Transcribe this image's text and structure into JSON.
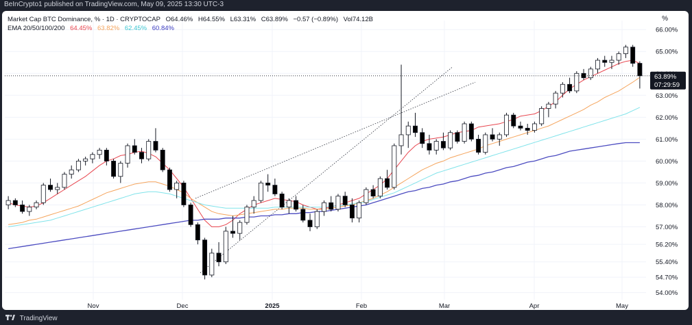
{
  "header": {
    "published": "BeInCrypto1 published on TradingView.com, May 09, 2025 13:30 UTC-3"
  },
  "legend": {
    "title": "Market Cap BTC Dominance, % · 1D · CRYPTOCAP",
    "open": "O64.46%",
    "high": "H64.55%",
    "low": "L63.31%",
    "close": "C63.89%",
    "change": "−0.57 (−0.89%)",
    "vol": "Vol74.12B",
    "ema_label": "EMA 20/50/100/200",
    "ema20": "64.45%",
    "ema50": "63.82%",
    "ema100": "62.45%",
    "ema200": "60.84%"
  },
  "axis_unit": "%",
  "price_tag": {
    "value": "63.89%",
    "countdown": "07:29:59"
  },
  "footer": {
    "brand": "TradingView"
  },
  "colors": {
    "up": "#ffffff",
    "down": "#000000",
    "candle_border": "#131722",
    "ema20": "#e8464f",
    "ema50": "#f5a45c",
    "ema100": "#7fe3ea",
    "ema200": "#4b4bc0",
    "grid": "#f0f3fa",
    "text": "#131722"
  },
  "chart_data": {
    "type": "candlestick",
    "y_ticks": [
      "66.00%",
      "65.00%",
      "64.00%",
      "63.00%",
      "62.00%",
      "61.00%",
      "60.00%",
      "59.00%",
      "58.00%",
      "57.00%",
      "56.20%",
      "55.40%",
      "54.70%",
      "54.00%"
    ],
    "x_ticks": [
      "Nov",
      "Dec",
      "2025",
      "Feb",
      "Mar",
      "Apr",
      "May"
    ],
    "ylim": [
      53.8,
      66.1
    ],
    "last_close": 63.89,
    "channel_lines": [
      {
        "from": [
          "2024-12-07",
          54.9
        ],
        "to": [
          "2025-03-01",
          64.3
        ]
      },
      {
        "from": [
          "2024-12-05",
          58.3
        ],
        "to": [
          "2025-03-15",
          63.6
        ]
      }
    ],
    "series": [
      {
        "name": "EMA 20",
        "values": [
          58.1,
          58.0,
          57.95,
          57.9,
          57.95,
          58.1,
          58.3,
          58.5,
          58.7,
          58.9,
          59.1,
          59.3,
          59.55,
          59.8,
          60.0,
          60.1,
          60.25,
          60.3,
          60.4,
          60.45,
          60.35,
          60.2,
          59.9,
          59.6,
          59.2,
          58.8,
          58.3,
          57.8,
          57.3,
          57.0,
          57.0,
          57.1,
          57.3,
          57.6,
          57.8,
          58.0,
          58.1,
          58.2,
          58.3,
          58.25,
          58.2,
          58.15,
          58.0,
          57.9,
          57.8,
          57.85,
          57.9,
          58.0,
          58.1,
          58.2,
          58.3,
          58.5,
          58.7,
          58.9,
          59.2,
          59.6,
          60.0,
          60.4,
          60.7,
          60.9,
          61.0,
          61.05,
          61.1,
          61.2,
          61.3,
          61.35,
          61.4,
          61.55,
          61.6,
          61.65,
          61.7,
          61.8,
          61.9,
          62.05,
          62.1,
          62.15,
          62.3,
          62.5,
          62.7,
          63.0,
          63.3,
          63.5,
          63.7,
          63.85,
          64.0,
          64.15,
          64.3,
          64.45,
          64.55,
          64.6,
          64.45
        ]
      },
      {
        "name": "EMA 50",
        "values": [
          57.1,
          57.15,
          57.2,
          57.3,
          57.35,
          57.45,
          57.55,
          57.65,
          57.75,
          57.85,
          57.95,
          58.1,
          58.25,
          58.4,
          58.55,
          58.65,
          58.75,
          58.85,
          58.95,
          59.0,
          59.05,
          59.05,
          58.95,
          58.85,
          58.7,
          58.55,
          58.3,
          58.1,
          57.9,
          57.7,
          57.6,
          57.55,
          57.5,
          57.55,
          57.6,
          57.65,
          57.7,
          57.75,
          57.8,
          57.8,
          57.85,
          57.85,
          57.85,
          57.8,
          57.8,
          57.8,
          57.85,
          57.9,
          57.95,
          58.0,
          58.1,
          58.2,
          58.3,
          58.45,
          58.6,
          58.8,
          59.0,
          59.2,
          59.4,
          59.6,
          59.75,
          59.9,
          60.0,
          60.15,
          60.25,
          60.35,
          60.45,
          60.55,
          60.7,
          60.8,
          60.9,
          61.0,
          61.1,
          61.2,
          61.3,
          61.4,
          61.5,
          61.6,
          61.75,
          61.9,
          62.05,
          62.2,
          62.35,
          62.55,
          62.7,
          62.9,
          63.05,
          63.2,
          63.4,
          63.6,
          63.82
        ]
      },
      {
        "name": "EMA 100",
        "values": [
          57.0,
          57.05,
          57.1,
          57.15,
          57.2,
          57.25,
          57.3,
          57.4,
          57.5,
          57.6,
          57.7,
          57.8,
          57.9,
          58.0,
          58.1,
          58.2,
          58.3,
          58.4,
          58.5,
          58.55,
          58.6,
          58.6,
          58.55,
          58.5,
          58.4,
          58.3,
          58.2,
          58.1,
          58.0,
          57.95,
          57.9,
          57.85,
          57.85,
          57.85,
          57.85,
          57.85,
          57.85,
          57.85,
          57.9,
          57.9,
          57.9,
          57.9,
          57.9,
          57.9,
          57.9,
          57.9,
          57.95,
          57.95,
          58.0,
          58.05,
          58.1,
          58.15,
          58.25,
          58.35,
          58.45,
          58.55,
          58.7,
          58.85,
          59.0,
          59.15,
          59.3,
          59.45,
          59.55,
          59.65,
          59.75,
          59.85,
          59.95,
          60.05,
          60.15,
          60.25,
          60.35,
          60.45,
          60.55,
          60.65,
          60.75,
          60.85,
          60.95,
          61.05,
          61.15,
          61.25,
          61.35,
          61.45,
          61.55,
          61.65,
          61.75,
          61.85,
          61.95,
          62.05,
          62.15,
          62.3,
          62.45
        ]
      },
      {
        "name": "EMA 200",
        "values": [
          56.0,
          56.05,
          56.1,
          56.15,
          56.2,
          56.25,
          56.3,
          56.35,
          56.4,
          56.45,
          56.5,
          56.55,
          56.6,
          56.65,
          56.7,
          56.75,
          56.8,
          56.85,
          56.9,
          56.95,
          57.0,
          57.05,
          57.1,
          57.15,
          57.2,
          57.25,
          57.3,
          57.3,
          57.35,
          57.35,
          57.35,
          57.4,
          57.4,
          57.4,
          57.45,
          57.45,
          57.5,
          57.5,
          57.55,
          57.55,
          57.6,
          57.6,
          57.65,
          57.65,
          57.7,
          57.7,
          57.75,
          57.8,
          57.85,
          57.9,
          57.95,
          58.0,
          58.1,
          58.2,
          58.3,
          58.4,
          58.5,
          58.6,
          58.65,
          58.75,
          58.8,
          58.9,
          58.95,
          59.05,
          59.1,
          59.2,
          59.3,
          59.35,
          59.45,
          59.5,
          59.6,
          59.7,
          59.75,
          59.85,
          59.95,
          60.0,
          60.1,
          60.2,
          60.25,
          60.35,
          60.45,
          60.5,
          60.55,
          60.6,
          60.65,
          60.7,
          60.75,
          60.8,
          60.84,
          60.84,
          60.84
        ]
      }
    ],
    "candles": [
      [
        58.0,
        58.4,
        57.8,
        58.2
      ],
      [
        58.2,
        58.3,
        57.9,
        58.0
      ],
      [
        58.0,
        58.2,
        57.6,
        57.7
      ],
      [
        57.7,
        58.0,
        57.5,
        57.9
      ],
      [
        57.9,
        58.2,
        57.8,
        58.1
      ],
      [
        58.1,
        59.0,
        58.0,
        58.9
      ],
      [
        58.9,
        59.2,
        58.6,
        58.7
      ],
      [
        58.7,
        59.0,
        58.5,
        58.8
      ],
      [
        58.8,
        59.5,
        58.7,
        59.4
      ],
      [
        59.4,
        59.8,
        59.2,
        59.6
      ],
      [
        59.6,
        60.1,
        59.5,
        60.0
      ],
      [
        60.0,
        60.2,
        59.8,
        60.1
      ],
      [
        60.1,
        60.4,
        59.9,
        60.3
      ],
      [
        60.3,
        60.6,
        60.1,
        60.5
      ],
      [
        60.5,
        60.6,
        59.8,
        60.0
      ],
      [
        60.0,
        60.1,
        59.2,
        59.3
      ],
      [
        59.3,
        60.0,
        59.0,
        59.9
      ],
      [
        59.9,
        60.8,
        59.7,
        60.7
      ],
      [
        60.7,
        61.0,
        60.3,
        60.4
      ],
      [
        60.4,
        60.6,
        59.9,
        60.1
      ],
      [
        60.1,
        61.0,
        60.0,
        60.9
      ],
      [
        60.9,
        61.5,
        60.4,
        60.5
      ],
      [
        60.5,
        60.6,
        59.5,
        59.6
      ],
      [
        59.6,
        59.7,
        58.6,
        58.7
      ],
      [
        58.7,
        59.1,
        58.3,
        59.0
      ],
      [
        59.0,
        59.1,
        57.9,
        58.0
      ],
      [
        58.0,
        58.1,
        57.0,
        57.1
      ],
      [
        57.1,
        57.2,
        56.2,
        56.4
      ],
      [
        56.4,
        56.5,
        54.6,
        54.8
      ],
      [
        54.8,
        56.0,
        54.7,
        55.8
      ],
      [
        55.8,
        56.3,
        55.2,
        55.4
      ],
      [
        55.4,
        57.0,
        55.3,
        56.8
      ],
      [
        56.8,
        57.5,
        56.5,
        56.7
      ],
      [
        56.7,
        57.3,
        56.4,
        57.2
      ],
      [
        57.2,
        58.0,
        57.1,
        57.9
      ],
      [
        57.9,
        58.4,
        57.6,
        58.2
      ],
      [
        58.2,
        59.1,
        58.1,
        59.0
      ],
      [
        59.0,
        59.4,
        58.6,
        58.9
      ],
      [
        58.9,
        59.2,
        58.4,
        58.5
      ],
      [
        58.5,
        58.6,
        57.8,
        57.9
      ],
      [
        57.9,
        58.3,
        57.6,
        58.2
      ],
      [
        58.2,
        58.4,
        57.7,
        57.8
      ],
      [
        57.8,
        58.0,
        57.2,
        57.3
      ],
      [
        57.3,
        57.6,
        56.8,
        57.0
      ],
      [
        57.0,
        57.8,
        56.9,
        57.7
      ],
      [
        57.7,
        58.2,
        57.5,
        58.1
      ],
      [
        58.1,
        58.4,
        57.7,
        57.8
      ],
      [
        57.8,
        58.5,
        57.7,
        58.4
      ],
      [
        58.4,
        58.6,
        57.9,
        58.0
      ],
      [
        58.0,
        58.3,
        57.2,
        57.4
      ],
      [
        57.4,
        58.2,
        57.2,
        58.1
      ],
      [
        58.1,
        58.8,
        58.0,
        58.7
      ],
      [
        58.7,
        58.9,
        58.3,
        58.4
      ],
      [
        58.4,
        59.3,
        58.3,
        59.2
      ],
      [
        59.2,
        59.6,
        58.7,
        58.8
      ],
      [
        58.8,
        60.8,
        58.7,
        60.7
      ],
      [
        60.7,
        64.4,
        60.3,
        61.2
      ],
      [
        61.2,
        61.8,
        60.6,
        61.6
      ],
      [
        61.6,
        62.2,
        61.1,
        61.3
      ],
      [
        61.3,
        61.5,
        60.6,
        60.8
      ],
      [
        60.8,
        61.2,
        60.3,
        60.5
      ],
      [
        60.5,
        61.0,
        60.3,
        60.9
      ],
      [
        60.9,
        61.3,
        60.5,
        60.6
      ],
      [
        60.6,
        61.4,
        60.5,
        61.3
      ],
      [
        61.3,
        61.4,
        60.8,
        60.9
      ],
      [
        60.9,
        61.8,
        60.8,
        61.7
      ],
      [
        61.7,
        61.8,
        60.9,
        61.0
      ],
      [
        61.0,
        61.2,
        60.3,
        60.4
      ],
      [
        60.4,
        61.3,
        60.3,
        61.2
      ],
      [
        61.2,
        61.5,
        60.9,
        61.0
      ],
      [
        61.0,
        61.3,
        60.7,
        61.2
      ],
      [
        61.2,
        62.2,
        61.1,
        62.1
      ],
      [
        62.1,
        62.2,
        61.5,
        61.6
      ],
      [
        61.6,
        61.8,
        61.4,
        61.5
      ],
      [
        61.5,
        61.7,
        61.2,
        61.4
      ],
      [
        61.4,
        61.8,
        61.3,
        61.7
      ],
      [
        61.7,
        62.5,
        61.6,
        62.4
      ],
      [
        62.4,
        62.7,
        62.0,
        62.6
      ],
      [
        62.6,
        63.2,
        62.4,
        63.1
      ],
      [
        63.1,
        63.6,
        62.9,
        63.5
      ],
      [
        63.5,
        63.8,
        63.1,
        63.2
      ],
      [
        63.2,
        64.1,
        63.1,
        64.0
      ],
      [
        64.0,
        64.2,
        63.7,
        63.8
      ],
      [
        63.8,
        64.3,
        63.7,
        64.2
      ],
      [
        64.2,
        64.7,
        64.0,
        64.6
      ],
      [
        64.6,
        64.8,
        64.3,
        64.5
      ],
      [
        64.5,
        64.8,
        64.2,
        64.6
      ],
      [
        64.6,
        65.0,
        64.4,
        64.9
      ],
      [
        64.9,
        65.3,
        64.7,
        65.2
      ],
      [
        65.2,
        65.3,
        64.3,
        64.46
      ],
      [
        64.46,
        64.55,
        63.31,
        63.89
      ]
    ],
    "candles_format": "[open, high, low, close]"
  }
}
